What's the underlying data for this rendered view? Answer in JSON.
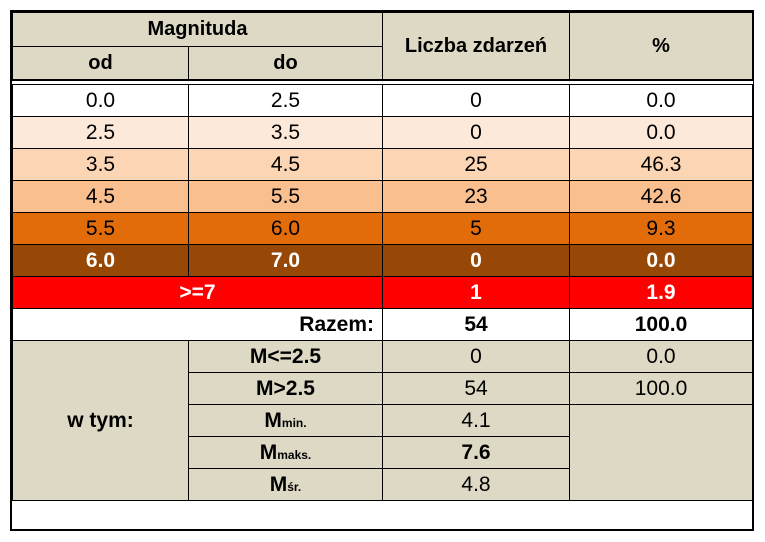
{
  "header": {
    "magnitude": "Magnituda",
    "from": "od",
    "to": "do",
    "count": "Liczba zdarzeń",
    "percent": "%"
  },
  "rows": [
    {
      "from": "0.0",
      "to": "2.5",
      "count": "0",
      "percent": "0.0",
      "color": "#ffffff",
      "text": "#000000",
      "bold": false
    },
    {
      "from": "2.5",
      "to": "3.5",
      "count": "0",
      "percent": "0.0",
      "color": "#fde9d9",
      "text": "#000000",
      "bold": false
    },
    {
      "from": "3.5",
      "to": "4.5",
      "count": "25",
      "percent": "46.3",
      "color": "#fcd5b4",
      "text": "#000000",
      "bold": false
    },
    {
      "from": "4.5",
      "to": "5.5",
      "count": "23",
      "percent": "42.6",
      "color": "#fabf8f",
      "text": "#000000",
      "bold": false
    },
    {
      "from": "5.5",
      "to": "6.0",
      "count": "5",
      "percent": "9.3",
      "color": "#e26b0a",
      "text": "#000000",
      "bold": false
    },
    {
      "from": "6.0",
      "to": "7.0",
      "count": "0",
      "percent": "0.0",
      "color": "#974706",
      "text": "#ffffff",
      "bold": true
    }
  ],
  "high": {
    "label": ">=7",
    "count": "1",
    "percent": "1.9",
    "color": "#ff0000",
    "text": "#ffffff"
  },
  "total": {
    "label": "Razem:",
    "count": "54",
    "percent": "100.0"
  },
  "breakdown": {
    "label": "w tym:",
    "le": {
      "label": "M<=2.5",
      "count": "0",
      "percent": "0.0"
    },
    "gt": {
      "label": "M>2.5",
      "count": "54",
      "percent": "100.0"
    },
    "min": {
      "label": "M",
      "sub": "min.",
      "value": "4.1"
    },
    "max": {
      "label": "M",
      "sub": "maks.",
      "value": "7.6"
    },
    "avg": {
      "label": "M",
      "sub": "śr.",
      "value": "4.8"
    }
  }
}
